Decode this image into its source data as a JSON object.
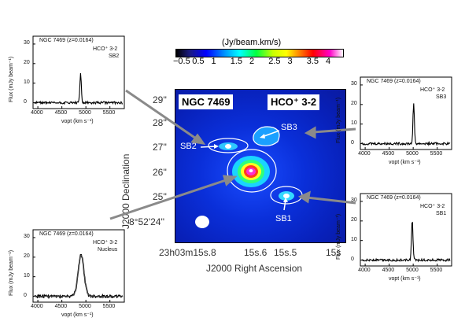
{
  "colorbar": {
    "title": "(Jy/beam.km/s)",
    "ticks": [
      "−0.5",
      "0.5",
      "1",
      "1.5",
      "2",
      "2.5",
      "3",
      "3.5",
      "4"
    ],
    "colors": [
      "#000000",
      "#1a1a80",
      "#0000ff",
      "#00a0ff",
      "#00ffff",
      "#00ff40",
      "#c8ff00",
      "#ffff00",
      "#ff8000",
      "#ff0000",
      "#ff00c8",
      "#ffffff"
    ]
  },
  "map": {
    "galaxy_label": "NGC 7469",
    "line_label": "HCO⁺ 3-2",
    "sources": {
      "sb1": "SB1",
      "sb2": "SB2",
      "sb3": "SB3"
    },
    "dec_ticks": [
      "29''",
      "28''",
      "27''",
      "26''",
      "25''",
      "8°52'24''"
    ],
    "ra_ticks": [
      "23h03m15s.8",
      "15s.6",
      "15s.5",
      "15s"
    ],
    "xlabel": "J2000 Right Ascension",
    "ylabel": "J2000 Declination"
  },
  "spectra": [
    {
      "id": "sb2",
      "title": "NGC 7469 (z=0.0164)",
      "line": "HCO⁺ 3-2",
      "region": "SB2",
      "xticks": [
        "4000",
        "4500",
        "5000",
        "5500"
      ],
      "yticks": [
        "30",
        "20",
        "10",
        "0"
      ],
      "xlabel": "vopt (km s⁻¹)",
      "ylabel": "Flux (mJy beam⁻¹)",
      "peak_velocity": 4890,
      "peak_flux": 15
    },
    {
      "id": "sb3",
      "title": "NGC 7469 (z=0.0164)",
      "line": "HCO⁺ 3-2",
      "region": "SB3",
      "xticks": [
        "4000",
        "4500",
        "5000",
        "5500"
      ],
      "yticks": [
        "30",
        "20",
        "10",
        "0"
      ],
      "xlabel": "vopt (km s⁻¹)",
      "ylabel": "Flux (mJy beam⁻¹)",
      "peak_velocity": 5010,
      "peak_flux": 20
    },
    {
      "id": "sb1",
      "title": "NGC 7469 (z=0.0164)",
      "line": "HCO⁺ 3-2",
      "region": "SB1",
      "xticks": [
        "4000",
        "4500",
        "5000",
        "5500"
      ],
      "yticks": [
        "30",
        "20",
        "10",
        "0"
      ],
      "xlabel": "vopt (km s⁻¹)",
      "ylabel": "Flux (mJy beam⁻¹)",
      "peak_velocity": 4980,
      "peak_flux": 21
    },
    {
      "id": "nucleus",
      "title": "NGC 7469 (z=0.0164)",
      "line": "HCO⁺ 3-2",
      "region": "Nucleus",
      "xticks": [
        "4000",
        "4500",
        "5000",
        "5500"
      ],
      "yticks": [
        "30",
        "20",
        "10",
        "0"
      ],
      "xlabel": "vopt (km s⁻¹)",
      "ylabel": "Flux (mJy beam⁻¹)",
      "peak_velocity": 4900,
      "peak_flux": 21
    }
  ]
}
